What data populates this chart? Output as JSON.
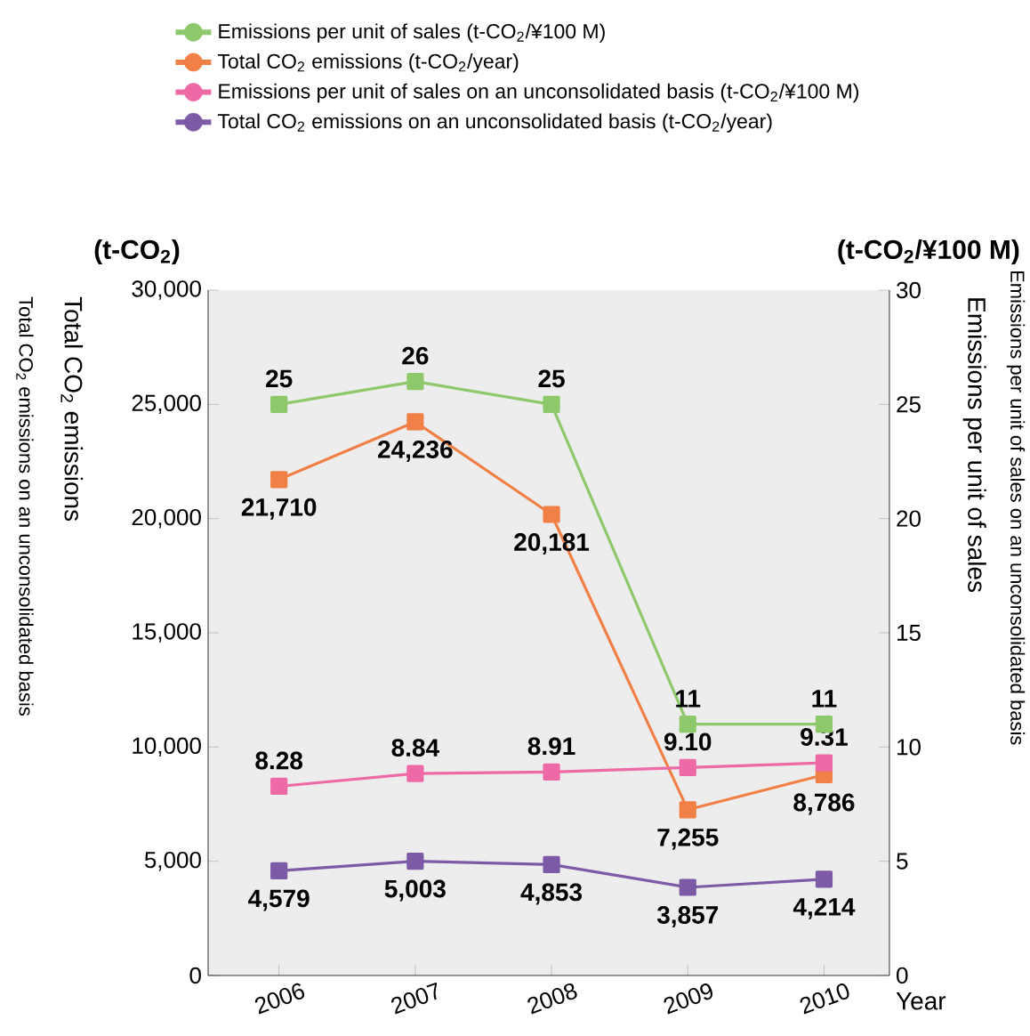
{
  "chart_data": {
    "type": "line",
    "categories": [
      "2006",
      "2007",
      "2008",
      "2009",
      "2010"
    ],
    "xlabel": "Year",
    "ylabel": "Total CO$_{2}$ emissions",
    "y2label": "Emissions per unit of sales",
    "annotations": [
      "(t-CO$_{2}$)",
      "(t-CO$_{2}$/¥100 M)",
      "Total CO$_{2}$ emissions on an unconsolidated basis",
      "Emissions per unit of sales on an unconsolidated basis"
    ],
    "series": [
      {
        "name": "Emissions per unit of sales (t-CO$_{2}$/¥100 M)",
        "color": "#8dc96b",
        "axis": "y2",
        "values": [
          25,
          26,
          25,
          11,
          11
        ],
        "value_labels": [
          "25",
          "26",
          "25",
          "11",
          "11"
        ]
      },
      {
        "name": "Total CO$_{2}$ emissions (t-CO$_{2}$/year)",
        "color": "#f08046",
        "values": [
          21710,
          24236,
          20181,
          7255,
          8786
        ],
        "value_labels": [
          "21,710",
          "24,236",
          "20,181",
          "7,255",
          "8,786"
        ]
      },
      {
        "name": "Emissions per unit of sales on an unconsolidated basis (t-CO$_{2}$/¥100 M)",
        "color": "#ee6aa7",
        "axis": "y2",
        "values": [
          8.28,
          8.84,
          8.91,
          9.1,
          9.31
        ],
        "value_labels": [
          "8.28",
          "8.84",
          "8.91",
          "9.10",
          "9.31"
        ]
      },
      {
        "name": "Total CO$_{2}$ emissions on an unconsolidated basis (t-CO$_{2}$/year)",
        "color": "#7d5aa6",
        "values": [
          4579,
          5003,
          4853,
          3857,
          4214
        ],
        "value_labels": [
          "4,579",
          "5,003",
          "4,853",
          "3,857",
          "4,214"
        ]
      }
    ],
    "ylim": [
      0,
      30000
    ],
    "yticks": [
      {
        "value": 0,
        "label": "0"
      },
      {
        "value": 5000,
        "label": "5,000"
      },
      {
        "value": 10000,
        "label": "10,000"
      },
      {
        "value": 15000,
        "label": "15,000"
      },
      {
        "value": 20000,
        "label": "20,000"
      },
      {
        "value": 25000,
        "label": "25,000"
      },
      {
        "value": 30000,
        "label": "30,000"
      }
    ],
    "y2lim": [
      0,
      30
    ],
    "y2ticks": [
      0,
      5,
      10,
      15,
      20,
      25,
      30
    ],
    "marker": "square",
    "line_style": "solid",
    "grid": false,
    "legend": "top"
  }
}
